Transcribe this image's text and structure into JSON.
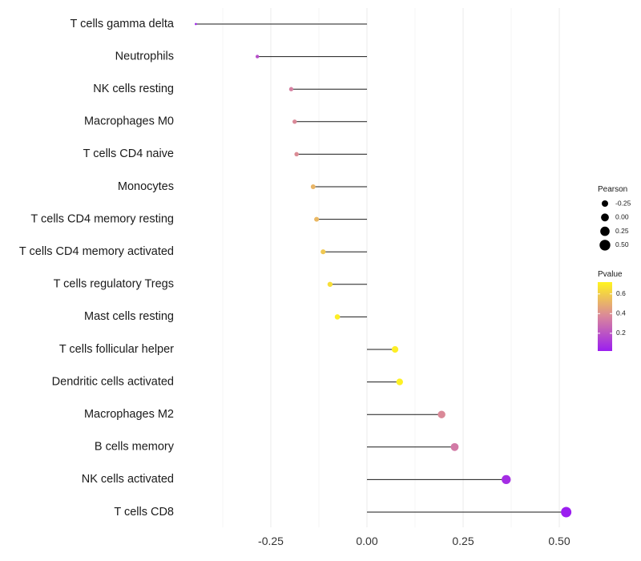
{
  "chart_data": {
    "type": "lollipop",
    "title": "",
    "xlabel": "",
    "ylabel": "",
    "xlim": [
      -0.45,
      0.53
    ],
    "x_ticks": [
      -0.25,
      0.0,
      0.25,
      0.5
    ],
    "x_tick_labels": [
      "-0.25",
      "0.00",
      "0.25",
      "0.50"
    ],
    "baseline": 0,
    "grid": "vertical",
    "categories": [
      "T cells gamma delta",
      "Neutrophils",
      "NK cells resting",
      "Macrophages M0",
      "T cells CD4 naive",
      "Monocytes",
      "T cells CD4 memory resting",
      "T cells CD4 memory activated",
      "T cells regulatory  Tregs ",
      "Mast cells resting",
      "T cells follicular helper",
      "Dendritic cells activated",
      "Macrophages M2",
      "B cells memory",
      "NK cells activated",
      "T cells CD8"
    ],
    "pearson": [
      -0.445,
      -0.285,
      -0.197,
      -0.188,
      -0.183,
      -0.14,
      -0.131,
      -0.114,
      -0.096,
      -0.077,
      0.073,
      0.085,
      0.194,
      0.228,
      0.362,
      0.518
    ],
    "pvalue": [
      0.05,
      0.18,
      0.35,
      0.38,
      0.39,
      0.52,
      0.53,
      0.58,
      0.65,
      0.7,
      0.7,
      0.71,
      0.38,
      0.33,
      0.07,
      0.02
    ],
    "legend_pearson": {
      "title": "Pearson",
      "values": [
        -0.25,
        0.0,
        0.25,
        0.5
      ],
      "labels": [
        "-0.25",
        "0.00",
        "0.25",
        "0.50"
      ]
    },
    "legend_pvalue": {
      "title": "Pvalue",
      "range": [
        0.02,
        0.72
      ],
      "ticks": [
        0.2,
        0.4,
        0.6
      ],
      "tick_labels": [
        "0.2",
        "0.4",
        "0.6"
      ],
      "color_low": "#9b1ef0",
      "color_mid": "#d9869c",
      "color_high": "#fff41f"
    }
  }
}
